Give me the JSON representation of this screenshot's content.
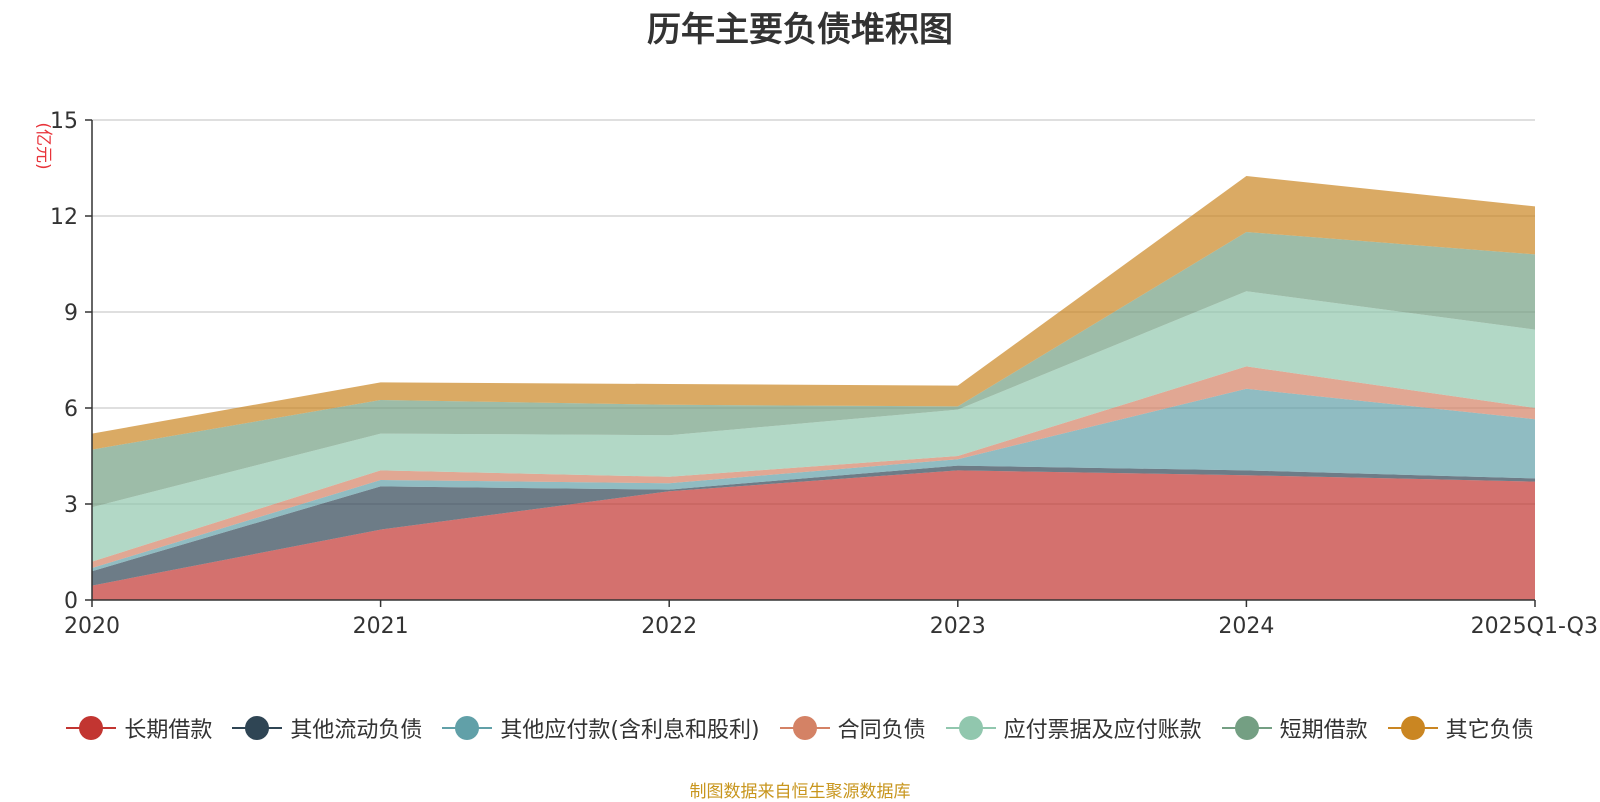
{
  "title": "历年主要负债堆积图",
  "source_note": "制图数据来自恒生聚源数据库",
  "source_color": "#c8961e",
  "chart_data": {
    "type": "area",
    "stacked": true,
    "title": "历年主要负债堆积图",
    "ylabel": "(亿元)",
    "ylabel_color": "#e8333a",
    "categories": [
      "2020",
      "2021",
      "2022",
      "2023",
      "2024",
      "2025Q1-Q3"
    ],
    "ylim": [
      0,
      15
    ],
    "yticks": [
      0,
      3,
      6,
      9,
      12,
      15
    ],
    "grid": true,
    "legend_position": "bottom",
    "series": [
      {
        "name": "长期借款",
        "color": "#c23531",
        "values": [
          0.45,
          2.2,
          3.4,
          4.05,
          3.9,
          3.7
        ]
      },
      {
        "name": "其他流动负债",
        "color": "#2f4554",
        "values": [
          0.45,
          1.35,
          0.05,
          0.15,
          0.15,
          0.1
        ]
      },
      {
        "name": "其他应付款(含利息和股利)",
        "color": "#61a0a8",
        "values": [
          0.1,
          0.2,
          0.2,
          0.2,
          2.55,
          1.85
        ]
      },
      {
        "name": "合同负债",
        "color": "#d48265",
        "values": [
          0.2,
          0.3,
          0.2,
          0.1,
          0.7,
          0.35
        ]
      },
      {
        "name": "应付票据及应付账款",
        "color": "#91c7ae",
        "values": [
          1.7,
          1.15,
          1.3,
          1.45,
          2.35,
          2.45
        ]
      },
      {
        "name": "短期借款",
        "color": "#749f83",
        "values": [
          1.8,
          1.05,
          0.95,
          0.1,
          1.85,
          2.35
        ]
      },
      {
        "name": "其它负债",
        "color": "#ca8622",
        "values": [
          0.5,
          0.55,
          0.65,
          0.65,
          1.75,
          1.5
        ]
      }
    ]
  }
}
